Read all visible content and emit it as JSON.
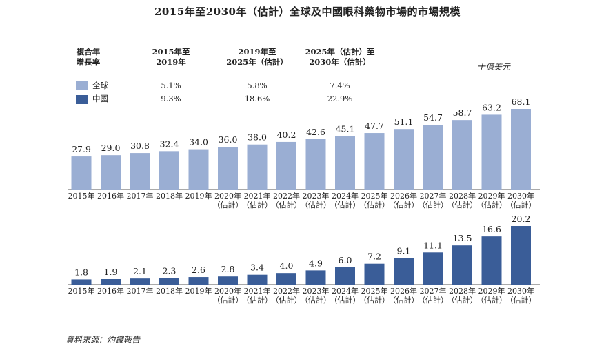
{
  "title": "2015年至2030年（估計）全球及中國眼科藥物市場的市場規模",
  "unit": "十億美元",
  "source": "資料來源：灼識報告",
  "cagr_table": {
    "header": {
      "label_line1": "複合年",
      "label_line2": "增長率",
      "col1_line1": "2015年至",
      "col1_line2": "2019年",
      "col2_line1": "2019年至",
      "col2_line2": "2025年（估計）",
      "col3_line1": "2025年（估計）至",
      "col3_line2": "2030年（估計）"
    },
    "rows": [
      {
        "label": "全球",
        "color": "#9aaed3",
        "values": [
          "5.1%",
          "5.8%",
          "7.4%"
        ]
      },
      {
        "label": "中國",
        "color": "#3a5d98",
        "values": [
          "9.3%",
          "18.6%",
          "22.9%"
        ]
      }
    ]
  },
  "chart_data": [
    {
      "type": "bar",
      "name": "全球",
      "color": "#9aaed3",
      "categories": [
        "2015年",
        "2016年",
        "2017年",
        "2018年",
        "2019年",
        "2020年",
        "2021年",
        "2022年",
        "2023年",
        "2024年",
        "2025年",
        "2026年",
        "2027年",
        "2028年",
        "2029年",
        "2030年"
      ],
      "category_subtitles": [
        "",
        "",
        "",
        "",
        "",
        "（估計）",
        "（估計）",
        "（估計）",
        "（估計）",
        "（估計）",
        "（估計）",
        "（估計）",
        "（估計）",
        "（估計）",
        "（估計）",
        "（估計）"
      ],
      "values": [
        27.9,
        29.0,
        30.8,
        32.4,
        34.0,
        36.0,
        38.0,
        40.2,
        42.6,
        45.1,
        47.7,
        51.1,
        54.7,
        58.7,
        63.2,
        68.1
      ],
      "value_labels": [
        "27.9",
        "29.0",
        "30.8",
        "32.4",
        "34.0",
        "36.0",
        "38.0",
        "40.2",
        "42.6",
        "45.1",
        "47.7",
        "51.1",
        "54.7",
        "58.7",
        "63.2",
        "68.1"
      ],
      "ylim": [
        0,
        68.1
      ]
    },
    {
      "type": "bar",
      "name": "中國",
      "color": "#3a5d98",
      "categories": [
        "2015年",
        "2016年",
        "2017年",
        "2018年",
        "2019年",
        "2020年",
        "2021年",
        "2022年",
        "2023年",
        "2024年",
        "2025年",
        "2026年",
        "2027年",
        "2028年",
        "2029年",
        "2030年"
      ],
      "category_subtitles": [
        "",
        "",
        "",
        "",
        "",
        "（估計）",
        "（估計）",
        "（估計）",
        "（估計）",
        "（估計）",
        "（估計）",
        "（估計）",
        "（估計）",
        "（估計）",
        "（估計）",
        "（估計）"
      ],
      "values": [
        1.8,
        1.9,
        2.1,
        2.3,
        2.6,
        2.8,
        3.4,
        4.0,
        4.9,
        6.0,
        7.2,
        9.1,
        11.1,
        13.5,
        16.6,
        20.2
      ],
      "value_labels": [
        "1.8",
        "1.9",
        "2.1",
        "2.3",
        "2.6",
        "2.8",
        "3.4",
        "4.0",
        "4.9",
        "6.0",
        "7.2",
        "9.1",
        "11.1",
        "13.5",
        "16.6",
        "20.2"
      ],
      "ylim": [
        0,
        20.2
      ]
    }
  ]
}
